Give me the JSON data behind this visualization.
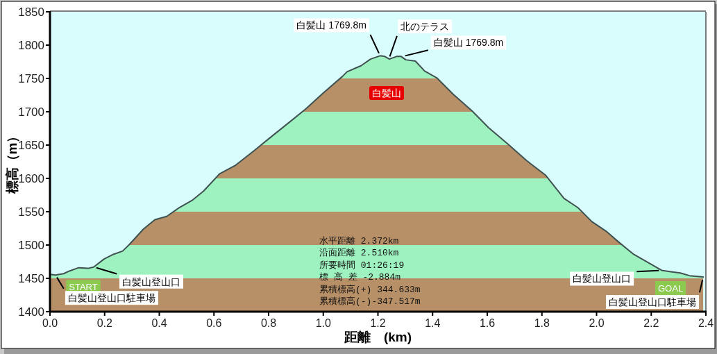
{
  "chart_data": {
    "type": "area",
    "xlabel": "距離　(km)",
    "ylabel": "標高（m）",
    "x": [
      0.0,
      0.02,
      0.05,
      0.071,
      0.105,
      0.139,
      0.16,
      0.198,
      0.232,
      0.266,
      0.291,
      0.342,
      0.384,
      0.427,
      0.469,
      0.52,
      0.562,
      0.621,
      0.68,
      0.748,
      0.799,
      0.875,
      0.935,
      1.002,
      1.07,
      1.087,
      1.138,
      1.173,
      1.208,
      1.225,
      1.242,
      1.268,
      1.285,
      1.302,
      1.337,
      1.371,
      1.415,
      1.476,
      1.545,
      1.605,
      1.674,
      1.743,
      1.813,
      1.881,
      1.932,
      1.983,
      2.034,
      2.085,
      2.136,
      2.187,
      2.238,
      2.272,
      2.306,
      2.34,
      2.39
    ],
    "series": [
      {
        "color": "#3f5252",
        "values": [
          1456,
          1455,
          1457,
          1461,
          1466,
          1465,
          1467,
          1479,
          1486,
          1491,
          1501,
          1524,
          1538,
          1543,
          1555,
          1567,
          1581,
          1607,
          1620,
          1642,
          1659,
          1684,
          1704,
          1729,
          1753,
          1760,
          1769,
          1779,
          1784,
          1783,
          1779,
          1783,
          1783,
          1778,
          1776,
          1761,
          1751,
          1726,
          1701,
          1676,
          1652,
          1627,
          1605,
          1570,
          1556,
          1535,
          1521,
          1503,
          1486,
          1474,
          1462,
          1460,
          1458,
          1454,
          1452
        ]
      }
    ],
    "xlim": [
      0,
      2.4
    ],
    "xticks": [
      {
        "value": 0,
        "label": "0.0"
      },
      {
        "value": 0.2,
        "label": "0.2"
      },
      {
        "value": 0.4,
        "label": "0.4"
      },
      {
        "value": 0.6,
        "label": "0.6"
      },
      {
        "value": 0.8,
        "label": "0.8"
      },
      {
        "value": 1,
        "label": "1.0"
      },
      {
        "value": 1.2,
        "label": "1.2"
      },
      {
        "value": 1.4,
        "label": "1.4"
      },
      {
        "value": 1.6,
        "label": "1.6"
      },
      {
        "value": 1.8,
        "label": "1.8"
      },
      {
        "value": 2,
        "label": "2.0"
      },
      {
        "value": 2.2,
        "label": "2.2"
      },
      {
        "value": 2.4,
        "label": "2.4"
      }
    ],
    "ylim": [
      1400,
      1850
    ],
    "yticks": [
      1400,
      1450,
      1500,
      1550,
      1600,
      1650,
      1700,
      1750,
      1800,
      1850
    ],
    "annotations": [
      {
        "text": "白髪山 1769.8m",
        "x": 1.208,
        "y": 1784
      },
      {
        "text": "北のテラス",
        "x": 1.24,
        "y": 1779
      },
      {
        "text": "白髪山 1769.8m",
        "x": 1.29,
        "y": 1783
      },
      "白髪山",
      {
        "text": "START",
        "x": 0.0,
        "y": 1456
      },
      {
        "text": "白髪山登山口駐車場",
        "x": 0.02,
        "y": 1455
      },
      {
        "text": "白髪山登山口",
        "x": 0.16,
        "y": 1467
      },
      {
        "text": "白髪山登山口",
        "x": 2.238,
        "y": 1462
      },
      {
        "text": "GOAL",
        "x": 2.39,
        "y": 1452
      },
      {
        "text": "白髪山登山口駐車場",
        "x": 2.39,
        "y": 1452
      },
      "水平距離 2.372km",
      "沿面距離 2.510km",
      "所要時間 01:26:19",
      "標 高 差 -2.884m",
      "累積標高(+) 344.633m",
      "累積標高(-)-347.517m"
    ]
  }
}
